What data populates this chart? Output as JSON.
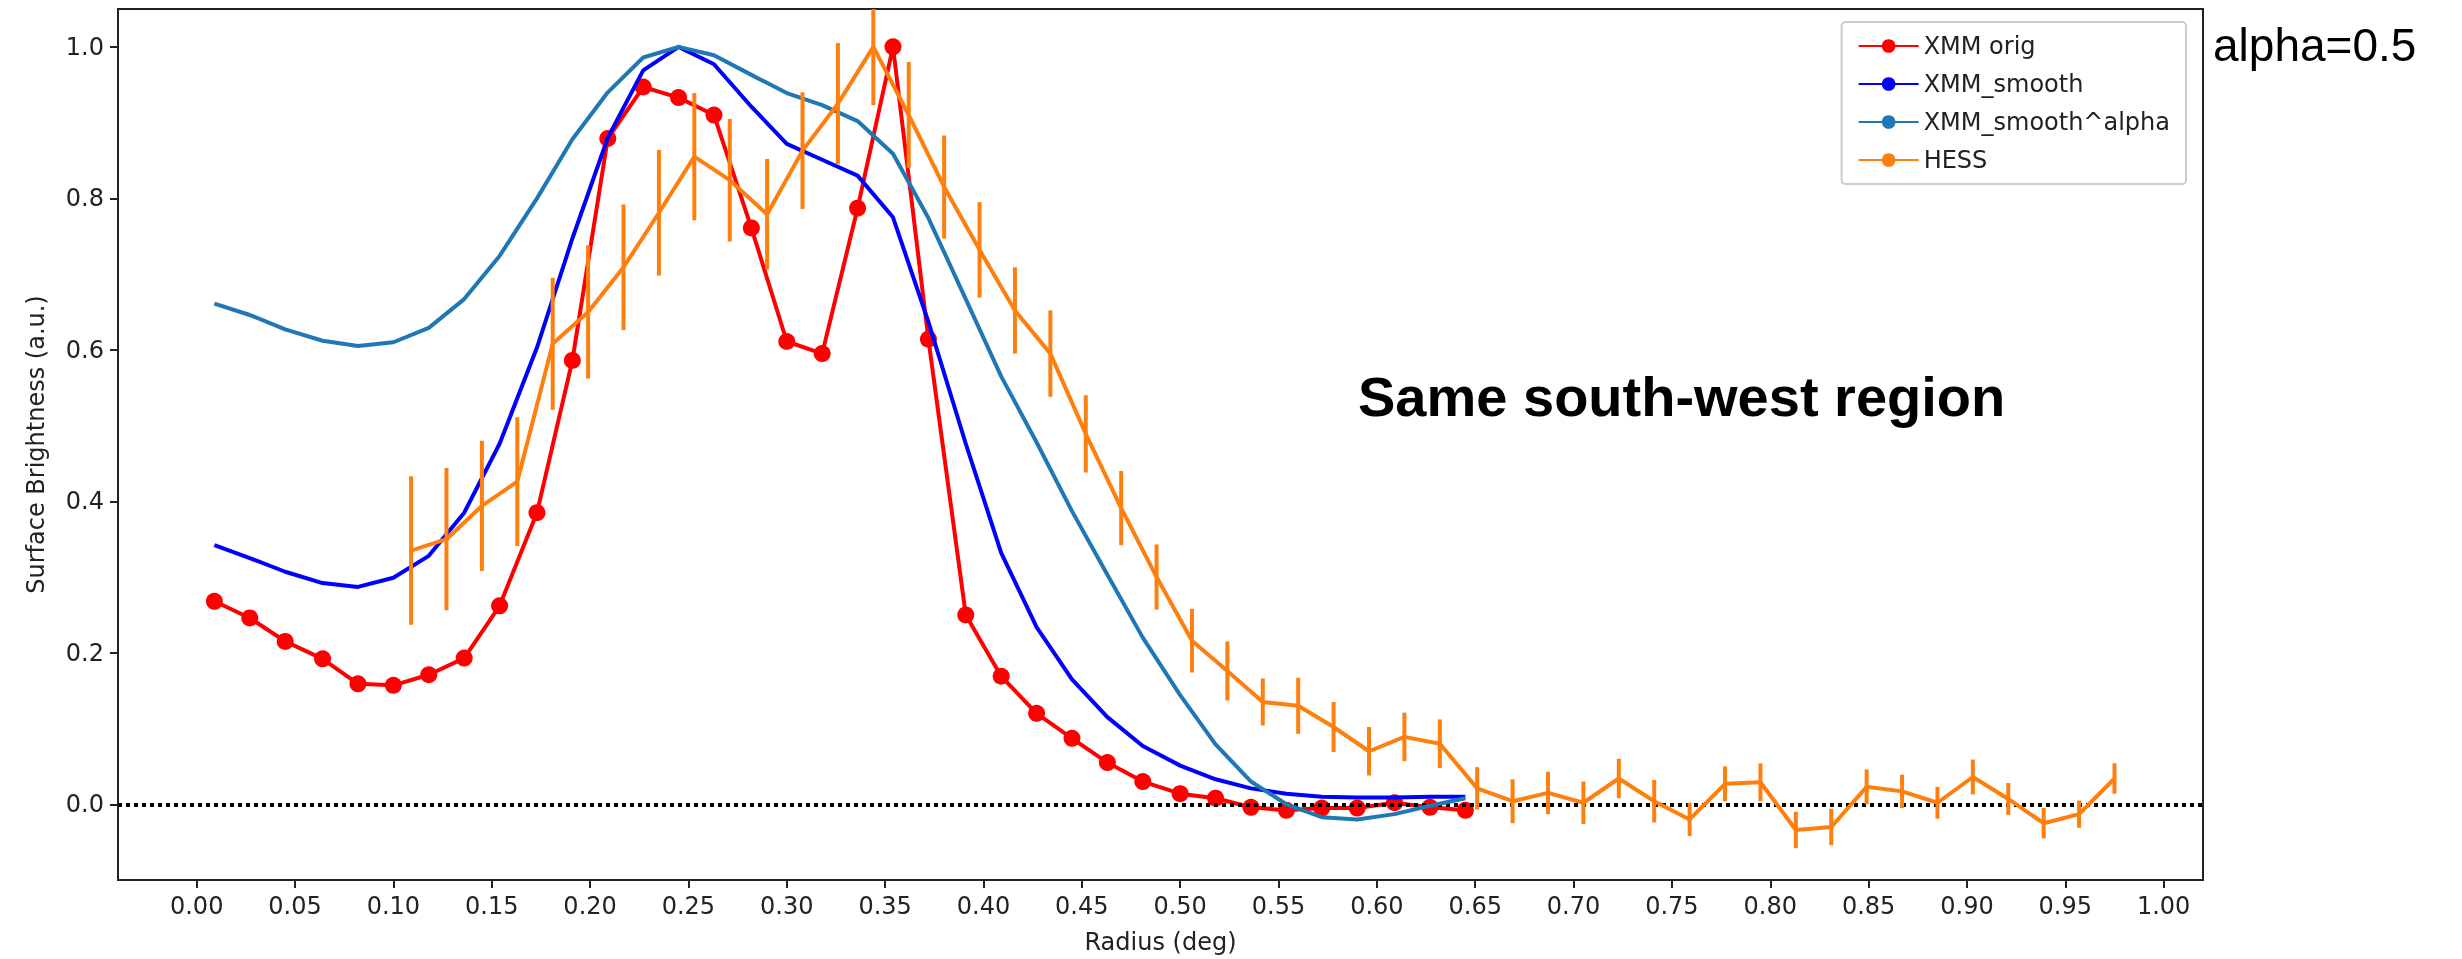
{
  "chart_data": {
    "type": "line",
    "xlabel": "Radius (deg)",
    "ylabel": "Surface Brightness (a.u.)",
    "annotations": [
      "Same south-west region",
      "alpha=0.5"
    ],
    "xlim": [
      -0.04,
      1.02
    ],
    "ylim": [
      -0.1,
      1.05
    ],
    "xticks": [
      {
        "value": 0,
        "label": "0.00"
      },
      {
        "value": 0.05,
        "label": "0.05"
      },
      {
        "value": 0.1,
        "label": "0.10"
      },
      {
        "value": 0.15,
        "label": "0.15"
      },
      {
        "value": 0.2,
        "label": "0.20"
      },
      {
        "value": 0.25,
        "label": "0.25"
      },
      {
        "value": 0.3,
        "label": "0.30"
      },
      {
        "value": 0.35,
        "label": "0.35"
      },
      {
        "value": 0.4,
        "label": "0.40"
      },
      {
        "value": 0.45,
        "label": "0.45"
      },
      {
        "value": 0.5,
        "label": "0.50"
      },
      {
        "value": 0.55,
        "label": "0.55"
      },
      {
        "value": 0.6,
        "label": "0.60"
      },
      {
        "value": 0.65,
        "label": "0.65"
      },
      {
        "value": 0.7,
        "label": "0.70"
      },
      {
        "value": 0.75,
        "label": "0.75"
      },
      {
        "value": 0.8,
        "label": "0.80"
      },
      {
        "value": 0.85,
        "label": "0.85"
      },
      {
        "value": 0.9,
        "label": "0.90"
      },
      {
        "value": 0.95,
        "label": "0.95"
      },
      {
        "value": 1,
        "label": "1.00"
      }
    ],
    "yticks": [
      {
        "value": 0,
        "label": "0.0"
      },
      {
        "value": 0.2,
        "label": "0.2"
      },
      {
        "value": 0.4,
        "label": "0.4"
      },
      {
        "value": 0.6,
        "label": "0.6"
      },
      {
        "value": 0.8,
        "label": "0.8"
      },
      {
        "value": 1,
        "label": "1.0"
      }
    ],
    "grid": false,
    "legend": "top right",
    "ref_lines": [
      {
        "axis": "y",
        "value": 0,
        "color": "#000000",
        "line_style": "dotted"
      }
    ],
    "series": [
      {
        "name": "XMM orig",
        "color": "#ff0000",
        "marker": "circle",
        "x": [
          0.009,
          0.027,
          0.045,
          0.064,
          0.082,
          0.1,
          0.118,
          0.136,
          0.154,
          0.173,
          0.191,
          0.209,
          0.227,
          0.245,
          0.263,
          0.282,
          0.3,
          0.318,
          0.336,
          0.354,
          0.372,
          0.391,
          0.409,
          0.427,
          0.445,
          0.463,
          0.481,
          0.5,
          0.518,
          0.536,
          0.554,
          0.572,
          0.59,
          0.609,
          0.627,
          0.645
        ],
        "values": [
          0.268,
          0.246,
          0.215,
          0.192,
          0.159,
          0.157,
          0.171,
          0.193,
          0.262,
          0.385,
          0.586,
          0.879,
          0.947,
          0.933,
          0.91,
          0.761,
          0.611,
          0.595,
          0.787,
          1.0,
          0.614,
          0.25,
          0.169,
          0.12,
          0.087,
          0.055,
          0.03,
          0.014,
          0.008,
          -0.004,
          -0.008,
          -0.005,
          -0.005,
          0.002,
          -0.004,
          -0.008
        ]
      },
      {
        "name": "XMM_smooth",
        "color": "#0000ff",
        "marker": "none",
        "x": [
          0.009,
          0.027,
          0.045,
          0.064,
          0.082,
          0.1,
          0.118,
          0.136,
          0.154,
          0.173,
          0.191,
          0.209,
          0.227,
          0.245,
          0.263,
          0.282,
          0.3,
          0.318,
          0.336,
          0.354,
          0.372,
          0.391,
          0.409,
          0.427,
          0.445,
          0.463,
          0.481,
          0.5,
          0.518,
          0.536,
          0.554,
          0.572,
          0.59,
          0.609,
          0.627,
          0.645
        ],
        "values": [
          0.342,
          0.325,
          0.307,
          0.292,
          0.287,
          0.299,
          0.328,
          0.385,
          0.476,
          0.603,
          0.747,
          0.88,
          0.969,
          1.0,
          0.977,
          0.921,
          0.872,
          0.851,
          0.83,
          0.775,
          0.637,
          0.476,
          0.332,
          0.234,
          0.165,
          0.115,
          0.077,
          0.051,
          0.033,
          0.021,
          0.014,
          0.01,
          0.009,
          0.009,
          0.01,
          0.01
        ]
      },
      {
        "name": "XMM_smooth^alpha",
        "color": "#1f77b4",
        "marker": "none",
        "x": [
          0.009,
          0.027,
          0.045,
          0.064,
          0.082,
          0.1,
          0.118,
          0.136,
          0.154,
          0.173,
          0.191,
          0.209,
          0.227,
          0.245,
          0.263,
          0.282,
          0.3,
          0.318,
          0.336,
          0.354,
          0.372,
          0.391,
          0.409,
          0.427,
          0.445,
          0.463,
          0.481,
          0.5,
          0.518,
          0.536,
          0.554,
          0.572,
          0.59,
          0.609,
          0.627,
          0.645
        ],
        "values": [
          0.661,
          0.646,
          0.627,
          0.612,
          0.605,
          0.61,
          0.629,
          0.667,
          0.724,
          0.8,
          0.878,
          0.94,
          0.986,
          1.0,
          0.989,
          0.963,
          0.939,
          0.923,
          0.902,
          0.859,
          0.774,
          0.667,
          0.565,
          0.478,
          0.387,
          0.303,
          0.22,
          0.144,
          0.079,
          0.03,
          0.0,
          -0.017,
          -0.02,
          -0.013,
          -0.002,
          0.008
        ]
      },
      {
        "name": "HESS",
        "color": "#ff7f0e",
        "marker": "none",
        "x": [
          0.109,
          0.127,
          0.145,
          0.163,
          0.181,
          0.199,
          0.217,
          0.235,
          0.253,
          0.271,
          0.29,
          0.308,
          0.326,
          0.344,
          0.362,
          0.38,
          0.398,
          0.416,
          0.434,
          0.452,
          0.47,
          0.488,
          0.506,
          0.524,
          0.542,
          0.56,
          0.578,
          0.596,
          0.614,
          0.632,
          0.651,
          0.669,
          0.687,
          0.705,
          0.723,
          0.741,
          0.759,
          0.777,
          0.795,
          0.813,
          0.831,
          0.849,
          0.867,
          0.885,
          0.903,
          0.921,
          0.939,
          0.957,
          0.975
        ],
        "values": [
          0.335,
          0.35,
          0.394,
          0.426,
          0.608,
          0.65,
          0.709,
          0.781,
          0.855,
          0.824,
          0.779,
          0.863,
          0.925,
          1.0,
          0.91,
          0.815,
          0.732,
          0.652,
          0.595,
          0.489,
          0.391,
          0.3,
          0.216,
          0.176,
          0.135,
          0.13,
          0.102,
          0.07,
          0.089,
          0.08,
          0.021,
          0.004,
          0.015,
          0.002,
          0.034,
          0.004,
          -0.02,
          0.027,
          0.029,
          -0.034,
          -0.03,
          0.023,
          0.017,
          0.002,
          0.036,
          0.007,
          -0.025,
          -0.013,
          0.034
        ],
        "errors": [
          0.098,
          0.094,
          0.086,
          0.085,
          0.087,
          0.088,
          0.083,
          0.083,
          0.084,
          0.081,
          0.073,
          0.077,
          0.08,
          [
            0.923,
            1.05
          ],
          0.07,
          0.068,
          0.063,
          0.057,
          0.057,
          0.051,
          0.049,
          0.043,
          0.042,
          0.039,
          0.031,
          0.037,
          0.033,
          0.032,
          0.032,
          0.032,
          0.028,
          0.029,
          0.028,
          0.028,
          0.026,
          0.028,
          0.022,
          0.023,
          0.025,
          0.024,
          0.024,
          0.023,
          0.022,
          0.021,
          0.023,
          0.021,
          0.02,
          0.018,
          0.02
        ]
      }
    ]
  }
}
